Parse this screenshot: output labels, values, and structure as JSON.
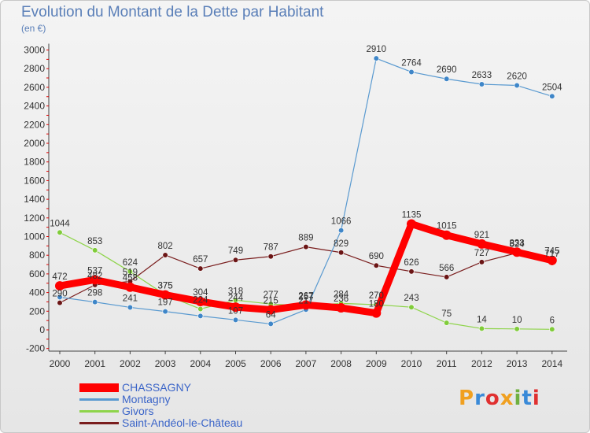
{
  "title": "Evolution du Montant de la Dette par Habitant",
  "unit_label": "(en €)",
  "brand": {
    "text": "Proxiti",
    "colors": [
      "#f0a020",
      "#3a8ad8",
      "#e03030",
      "#f0a020",
      "#70b040",
      "#3a8ad8",
      "#e03030"
    ]
  },
  "chart_data": {
    "type": "line",
    "x": [
      "2000",
      "2001",
      "2002",
      "2003",
      "2004",
      "2005",
      "2006",
      "2007",
      "2008",
      "2009",
      "2010",
      "2011",
      "2012",
      "2013",
      "2014"
    ],
    "ylim": [
      -200,
      3000
    ],
    "yticks": [
      -200,
      0,
      200,
      400,
      600,
      800,
      1000,
      1200,
      1400,
      1600,
      1800,
      2000,
      2200,
      2400,
      2600,
      2800,
      3000
    ],
    "grid": false,
    "legend_position": "bottom-left",
    "series": [
      {
        "name": "Saint-Andéol-le-Château",
        "color": "#7a1e1e",
        "marker": "#6b1515",
        "width": 1.2,
        "values": [
          290,
          482,
          519,
          802,
          657,
          749,
          787,
          889,
          829,
          690,
          626,
          566,
          727,
          824,
          717
        ],
        "labels": [
          "290",
          "482",
          "519",
          "802",
          "657",
          "749",
          "787",
          "889",
          "829",
          "690",
          "626",
          "566",
          "727",
          "824",
          "717"
        ]
      },
      {
        "name": "Givors",
        "color": "#8ed44a",
        "marker": "#80cc3a",
        "width": 1.2,
        "values": [
          1044,
          853,
          624,
          375,
          224,
          318,
          277,
          257,
          284,
          270,
          243,
          75,
          14,
          10,
          6
        ],
        "labels": [
          "1044",
          "853",
          "624",
          "375",
          "224",
          "318",
          "277",
          "257",
          "284",
          "270",
          "243",
          "75",
          "14",
          "10",
          "6"
        ]
      },
      {
        "name": "Montagny",
        "color": "#5a9ad0",
        "marker": "#3f86c8",
        "width": 1.2,
        "values": [
          350,
          298,
          241,
          197,
          149,
          107,
          64,
          217,
          1066,
          2910,
          2764,
          2690,
          2633,
          2620,
          2504
        ],
        "labels": [
          "",
          "298",
          "241",
          "197",
          "",
          "107",
          "64",
          "217",
          "1066",
          "2910",
          "2764",
          "2690",
          "2633",
          "2620",
          "2504"
        ]
      },
      {
        "name": "CHASSAGNY",
        "color": "#ff0000",
        "marker": "#ff0000",
        "width": 9,
        "values": [
          472,
          537,
          458,
          375,
          304,
          244,
          215,
          267,
          236,
          180,
          1135,
          1015,
          921,
          833,
          745
        ],
        "labels": [
          "472",
          "537",
          "458",
          "375",
          "304",
          "244",
          "215",
          "267",
          "236",
          "180",
          "1135",
          "1015",
          "921",
          "833",
          "745"
        ]
      }
    ]
  }
}
